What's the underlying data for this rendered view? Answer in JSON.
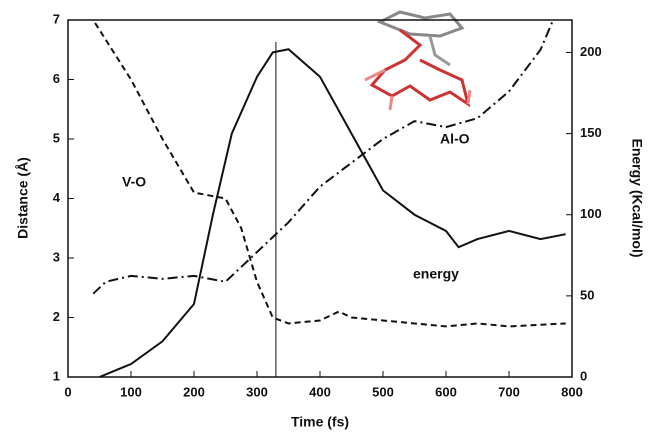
{
  "chart_data": {
    "type": "line",
    "xlabel": "Time (fs)",
    "ylabel": "Distance (Å)",
    "y2label": "Energy (Kcal/mol)",
    "xlim": [
      0,
      800
    ],
    "xticks": [
      0,
      100,
      200,
      300,
      400,
      500,
      600,
      700,
      800
    ],
    "ylim": [
      1,
      7
    ],
    "yticks": [
      1,
      2,
      3,
      4,
      5,
      6,
      7
    ],
    "y2lim": [
      0,
      220
    ],
    "y2ticks": [
      0,
      50,
      100,
      150,
      200
    ],
    "vline": 330,
    "annotations": [
      "V-O",
      "Al-O",
      "energy"
    ],
    "series": [
      {
        "name": "V-O",
        "color": "#111111",
        "style": "dashed",
        "x": [
          43,
          100,
          150,
          200,
          250,
          275,
          300,
          325,
          350,
          400,
          430,
          450,
          500,
          550,
          600,
          650,
          700,
          790
        ],
        "values": [
          6.95,
          6.0,
          5.0,
          4.1,
          4.0,
          3.5,
          2.6,
          2.0,
          1.9,
          1.95,
          2.1,
          2.0,
          1.95,
          1.9,
          1.85,
          1.9,
          1.85,
          1.9
        ]
      },
      {
        "name": "Al-O",
        "color": "#111111",
        "style": "dashdot",
        "x": [
          40,
          60,
          100,
          150,
          200,
          250,
          300,
          350,
          400,
          450,
          500,
          550,
          600,
          650,
          700,
          750,
          770
        ],
        "values": [
          2.4,
          2.6,
          2.7,
          2.65,
          2.7,
          2.6,
          3.1,
          3.6,
          4.2,
          4.6,
          5.0,
          5.3,
          5.2,
          5.35,
          5.8,
          6.5,
          7.0
        ]
      },
      {
        "name": "energy",
        "color": "#111111",
        "style": "solid",
        "axis": "y2",
        "x": [
          50,
          100,
          150,
          200,
          230,
          260,
          300,
          325,
          350,
          400,
          450,
          500,
          550,
          600,
          620,
          650,
          700,
          750,
          790
        ],
        "values": [
          0,
          8,
          22,
          45,
          100,
          150,
          185,
          200,
          202,
          185,
          150,
          115,
          100,
          90,
          80,
          85,
          90,
          85,
          88
        ]
      }
    ]
  }
}
